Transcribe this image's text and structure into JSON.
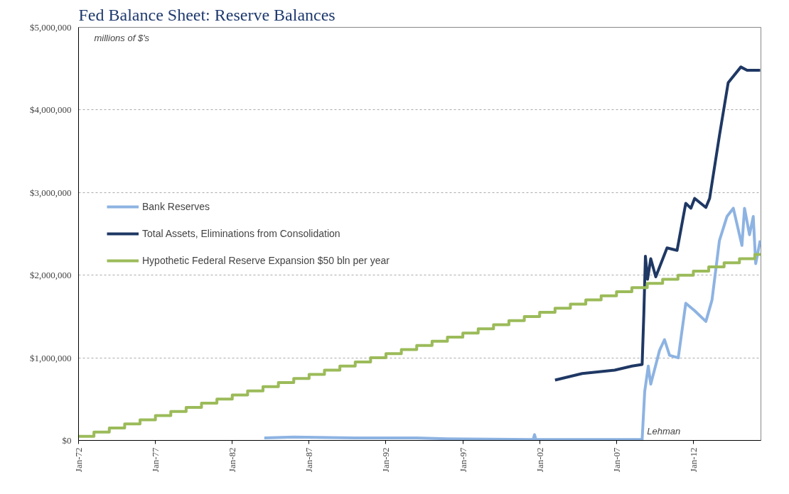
{
  "chart_data": {
    "type": "line",
    "title": "Fed Balance Sheet: Reserve Balances",
    "annotations": [
      "millions of $'s",
      {
        "text": "Lehman",
        "x": "2008-09-15",
        "y": 0
      }
    ],
    "xlim": [
      "1972-01-01",
      "2016-05-25"
    ],
    "xticks": [
      {
        "value": "1972-01-01",
        "label": "Jan-72"
      },
      {
        "value": "1977-01-01",
        "label": "Jan-77"
      },
      {
        "value": "1982-01-01",
        "label": "Jan-82"
      },
      {
        "value": "1987-01-01",
        "label": "Jan-87"
      },
      {
        "value": "1992-01-01",
        "label": "Jan-92"
      },
      {
        "value": "1997-01-01",
        "label": "Jan-97"
      },
      {
        "value": "2002-01-01",
        "label": "Jan-02"
      },
      {
        "value": "2007-01-01",
        "label": "Jan-07"
      },
      {
        "value": "2012-01-01",
        "label": "Jan-12"
      }
    ],
    "ylim": [
      0,
      5000000
    ],
    "yticks": [
      {
        "value": 0,
        "label": "$0"
      },
      {
        "value": 1000000,
        "label": "$1,000,000"
      },
      {
        "value": 2000000,
        "label": "$2,000,000"
      },
      {
        "value": 3000000,
        "label": "$3,000,000"
      },
      {
        "value": 4000000,
        "label": "$4,000,000"
      },
      {
        "value": 5000000,
        "label": "$5,000,000"
      }
    ],
    "grid": "y",
    "legend": "left",
    "line_style": "solid",
    "series": [
      {
        "name": "Bank Reserves",
        "color": "#8db3e2",
        "x": [
          "1984-02-01",
          "1986-01-01",
          "1990-01-01",
          "1994-01-01",
          "1996-01-01",
          "2001-08-01",
          "2001-09-01",
          "2001-10-01",
          "2008-08-01",
          "2008-09-01",
          "2008-11-01",
          "2009-01-25",
          "2009-03-25",
          "2009-10-20",
          "2010-02-15",
          "2010-06-15",
          "2011-01-08",
          "2011-07-05",
          "2012-02-01",
          "2012-10-25",
          "2013-03-20",
          "2013-09-12",
          "2014-03-10",
          "2014-08-08",
          "2015-03-01",
          "2015-05-01",
          "2015-08-28",
          "2015-11-25",
          "2016-01-22",
          "2016-05-08"
        ],
        "values": [
          30000,
          40000,
          30000,
          30000,
          20000,
          10000,
          70000,
          10000,
          10000,
          10000,
          590000,
          900000,
          680000,
          1090000,
          1220000,
          1030000,
          1000000,
          1660000,
          1570000,
          1440000,
          1700000,
          2420000,
          2710000,
          2810000,
          2360000,
          2810000,
          2490000,
          2710000,
          2140000,
          2420000
        ]
      },
      {
        "name": "Total Assets, Eliminations from Consolidation",
        "color": "#1f3864",
        "x": [
          "2003-01-01",
          "2004-10-08",
          "2006-11-18",
          "2008-01-05",
          "2008-09-01",
          "2008-10-12",
          "2008-11-18",
          "2009-01-08",
          "2009-03-25",
          "2009-07-22",
          "2010-04-16",
          "2010-12-10",
          "2011-07-05",
          "2011-11-03",
          "2012-02-01",
          "2012-10-25",
          "2013-01-22",
          "2013-09-12",
          "2014-04-08",
          "2015-02-03",
          "2015-07-01",
          "2016-05-08"
        ],
        "values": [
          730000,
          810000,
          850000,
          900000,
          920000,
          1540000,
          2230000,
          1950000,
          2200000,
          1980000,
          2330000,
          2300000,
          2870000,
          2810000,
          2930000,
          2820000,
          2930000,
          3690000,
          4330000,
          4520000,
          4480000,
          4480000
        ]
      },
      {
        "name": "Hypothetic Federal Reserve Expansion $50 bln per year",
        "type": "step",
        "color": "#9bbb59",
        "x": [
          "1972-01-01",
          "1973-01-01",
          "1974-01-01",
          "1975-01-01",
          "1976-01-01",
          "1977-01-01",
          "1978-01-01",
          "1979-01-01",
          "1980-01-01",
          "1981-01-01",
          "1982-01-01",
          "1983-01-01",
          "1984-01-01",
          "1985-01-01",
          "1986-01-01",
          "1987-01-01",
          "1988-01-01",
          "1989-01-01",
          "1990-01-01",
          "1991-01-01",
          "1992-01-01",
          "1993-01-01",
          "1994-01-01",
          "1995-01-01",
          "1996-01-01",
          "1997-01-01",
          "1998-01-01",
          "1999-01-01",
          "2000-01-01",
          "2001-01-01",
          "2002-01-01",
          "2003-01-01",
          "2004-01-01",
          "2005-01-01",
          "2006-01-01",
          "2007-01-01",
          "2008-01-01",
          "2009-01-01",
          "2010-01-01",
          "2011-01-01",
          "2012-01-01",
          "2013-01-01",
          "2014-01-01",
          "2015-01-01",
          "2016-01-01",
          "2016-05-25"
        ],
        "values": [
          50000,
          100000,
          150000,
          200000,
          250000,
          300000,
          350000,
          400000,
          450000,
          500000,
          550000,
          600000,
          650000,
          700000,
          750000,
          800000,
          850000,
          900000,
          950000,
          1000000,
          1050000,
          1100000,
          1150000,
          1200000,
          1250000,
          1300000,
          1350000,
          1400000,
          1450000,
          1500000,
          1550000,
          1600000,
          1650000,
          1700000,
          1750000,
          1800000,
          1850000,
          1900000,
          1950000,
          2000000,
          2050000,
          2100000,
          2150000,
          2200000,
          2250000,
          2250000
        ]
      }
    ]
  }
}
